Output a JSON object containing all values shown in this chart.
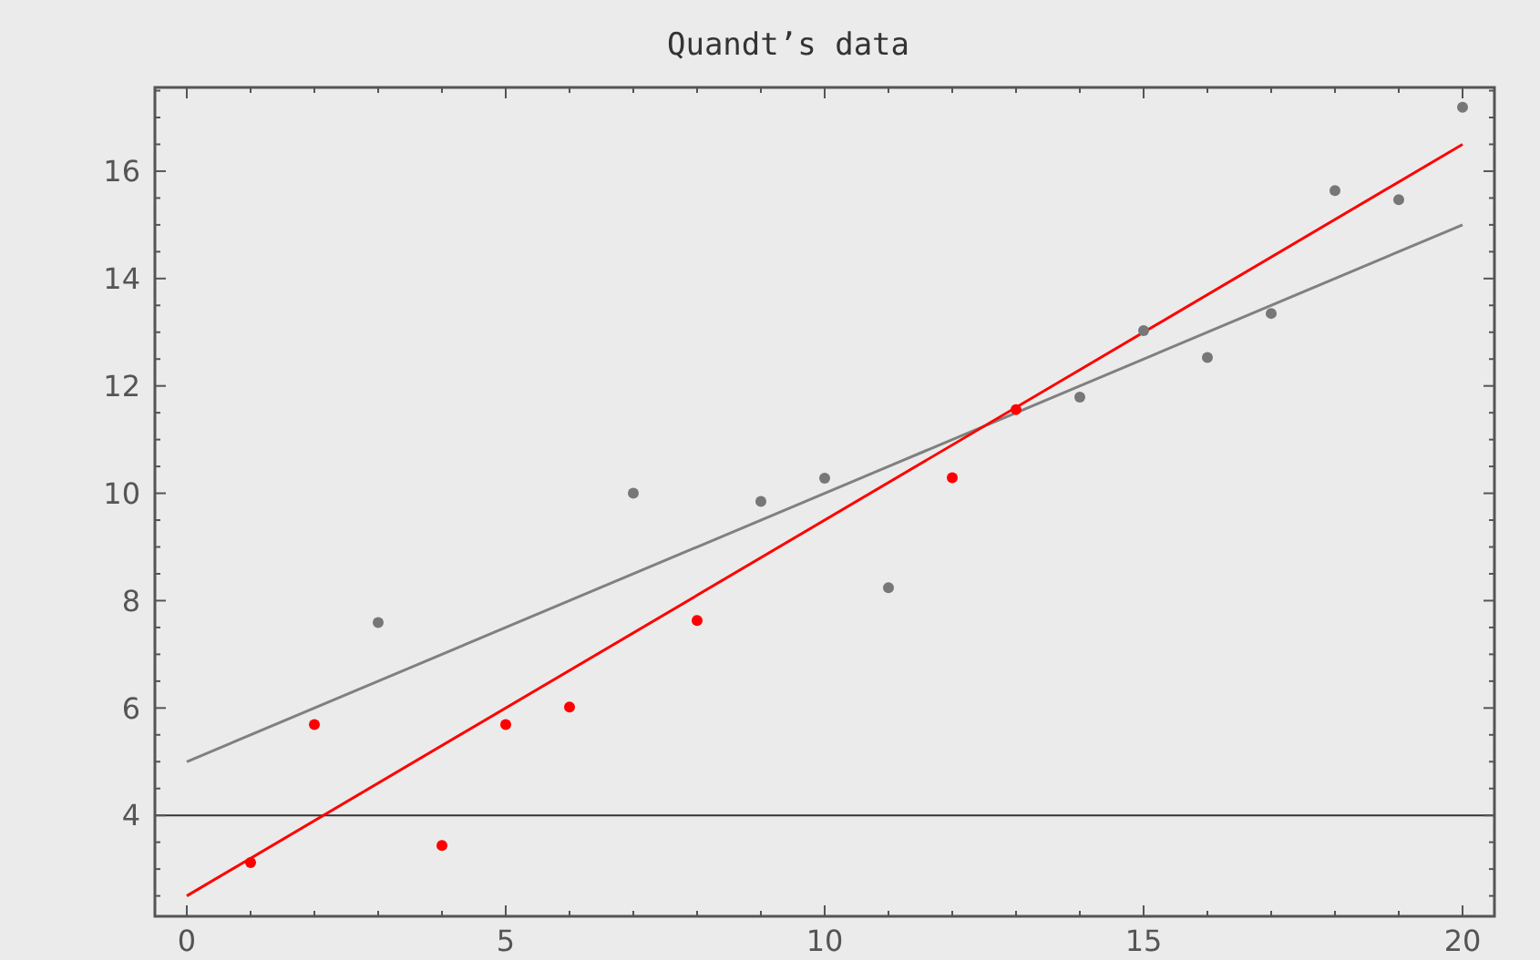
{
  "chart_data": {
    "type": "scatter",
    "title": "Quandt’s data",
    "series": [
      {
        "color": "#777777",
        "x": [
          3,
          7,
          9,
          10,
          11,
          14,
          15,
          16,
          17,
          18,
          19,
          20
        ],
        "values": [
          7.59,
          10.0,
          9.85,
          10.28,
          8.24,
          11.79,
          13.03,
          12.53,
          13.35,
          15.64,
          15.47,
          17.19
        ]
      },
      {
        "color": "#ff0000",
        "x": [
          1,
          2,
          4,
          5,
          6,
          8,
          12,
          13
        ],
        "values": [
          3.12,
          5.69,
          3.44,
          5.69,
          6.02,
          7.63,
          10.29,
          11.56
        ]
      },
      {
        "type": "line",
        "marker": "none",
        "color": "#808080",
        "x": [
          0,
          20
        ],
        "values": [
          5,
          15
        ]
      },
      {
        "type": "line",
        "marker": "none",
        "color": "#ff0000",
        "x": [
          0,
          20
        ],
        "values": [
          2.5,
          16.5
        ]
      }
    ],
    "xlim": [
      -0.5,
      20.5
    ],
    "ylim": [
      2.12,
      17.56
    ],
    "xticks": [
      0,
      {
        "value": 1,
        "label": null
      },
      {
        "value": 2,
        "label": null
      },
      {
        "value": 3,
        "label": null
      },
      {
        "value": 4,
        "label": null
      },
      5,
      {
        "value": 6,
        "label": null
      },
      {
        "value": 7,
        "label": null
      },
      {
        "value": 8,
        "label": null
      },
      {
        "value": 9,
        "label": null
      },
      10,
      {
        "value": 11,
        "label": null
      },
      {
        "value": 12,
        "label": null
      },
      {
        "value": 13,
        "label": null
      },
      {
        "value": 14,
        "label": null
      },
      15,
      {
        "value": 16,
        "label": null
      },
      {
        "value": 17,
        "label": null
      },
      {
        "value": 18,
        "label": null
      },
      {
        "value": 19,
        "label": null
      },
      20
    ],
    "yticks": [
      {
        "value": 2.5,
        "label": null
      },
      {
        "value": 3,
        "label": null
      },
      {
        "value": 3.5,
        "label": null
      },
      4,
      {
        "value": 4.5,
        "label": null
      },
      {
        "value": 5,
        "label": null
      },
      {
        "value": 5.5,
        "label": null
      },
      6,
      {
        "value": 6.5,
        "label": null
      },
      {
        "value": 7,
        "label": null
      },
      {
        "value": 7.5,
        "label": null
      },
      8,
      {
        "value": 8.5,
        "label": null
      },
      {
        "value": 9,
        "label": null
      },
      {
        "value": 9.5,
        "label": null
      },
      10,
      {
        "value": 10.5,
        "label": null
      },
      {
        "value": 11,
        "label": null
      },
      {
        "value": 11.5,
        "label": null
      },
      12,
      {
        "value": 12.5,
        "label": null
      },
      {
        "value": 13,
        "label": null
      },
      {
        "value": 13.5,
        "label": null
      },
      14,
      {
        "value": 14.5,
        "label": null
      },
      {
        "value": 15,
        "label": null
      },
      {
        "value": 15.5,
        "label": null
      },
      16,
      {
        "value": 16.5,
        "label": null
      },
      {
        "value": 17,
        "label": null
      },
      {
        "value": 17.5,
        "label": null
      }
    ],
    "ref_lines": [
      {
        "axis": "y",
        "value": 4,
        "color": "#333333"
      }
    ],
    "marker": "circle"
  }
}
